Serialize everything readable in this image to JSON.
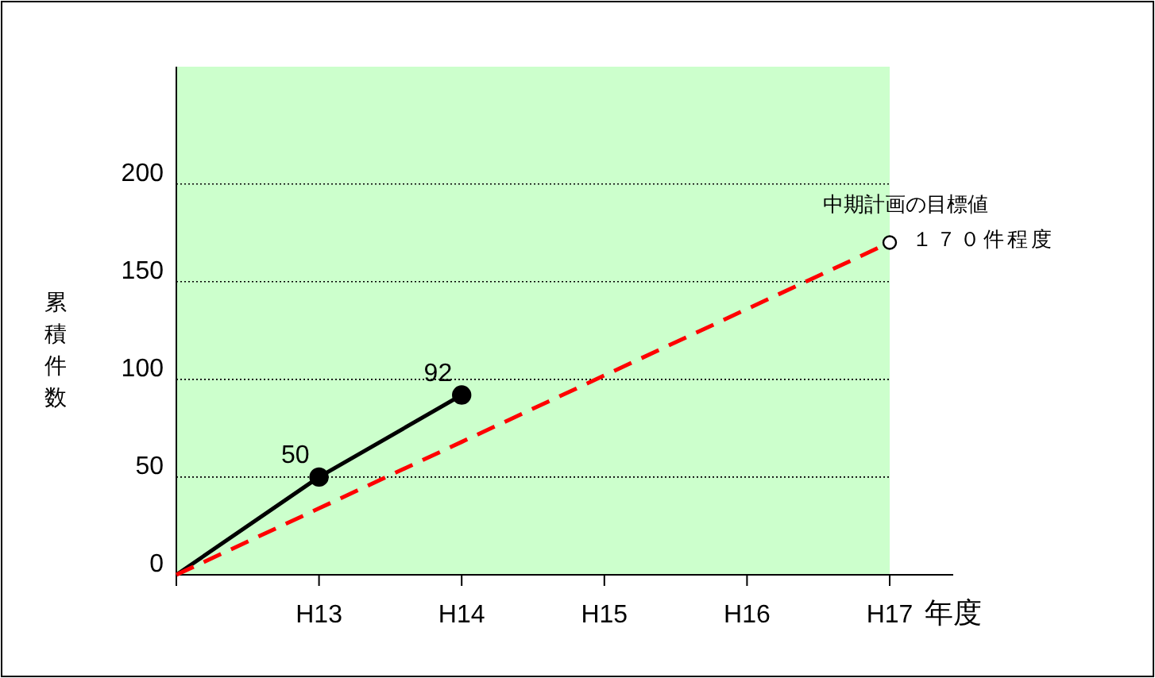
{
  "chart_data": {
    "type": "line",
    "xlabel": "年度",
    "ylabel": "累積件数",
    "categories": [
      null,
      "H13",
      "H14",
      "H15",
      "H16",
      "H17"
    ],
    "ylim": [
      0,
      260
    ],
    "yticks": [
      0,
      50,
      100,
      150,
      200
    ],
    "grid": "y",
    "series": [
      {
        "color": "#000000",
        "values": [
          0,
          50,
          92,
          null,
          null,
          null
        ],
        "line_style": "solid",
        "marker": "none"
      },
      {
        "color": "#ff0000",
        "values": [
          0,
          34,
          68,
          102,
          136,
          170
        ],
        "line_style": "dashed",
        "marker": "none"
      },
      {
        "type": "scatter",
        "color": "#000000",
        "values": [
          null,
          50,
          92,
          null,
          null,
          null
        ],
        "marker": "circle",
        "value_labels": [
          null,
          "50",
          "92",
          null,
          null,
          null
        ]
      },
      {
        "type": "scatter",
        "color": "#ffffff",
        "values": [
          null,
          null,
          null,
          null,
          null,
          170
        ],
        "marker": "circle"
      }
    ],
    "annotations": [
      "中期計画の目標値",
      "１７０件程度"
    ]
  }
}
